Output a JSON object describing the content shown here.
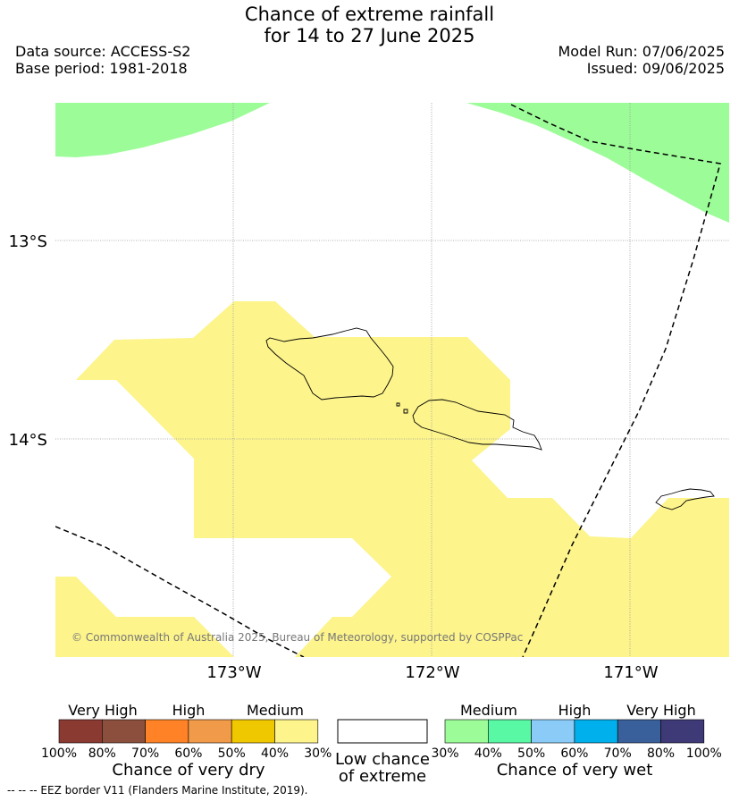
{
  "title_line1": "Chance of extreme rainfall",
  "title_line2": "for 14 to 27 June 2025",
  "data_source": "Data source: ACCESS-S2",
  "base_period": "Base period: 1981-2018",
  "model_run": "Model Run: 07/06/2025",
  "issued": "Issued: 09/06/2025",
  "lat_labels": [
    "13°S",
    "14°S"
  ],
  "lon_labels": [
    "173°W",
    "172°W",
    "171°W"
  ],
  "copyright": "© Commonwealth of Australia 2025, Bureau of Meteorology, supported by COSPPac",
  "footnote": "--  --  -- EEZ border V11 (Flanders Marine Institute, 2019).",
  "legend_dry": {
    "title": "Chance of very dry",
    "categories": [
      "Very High",
      "High",
      "Medium"
    ],
    "colors": [
      "#8b3a32",
      "#8c4f3e",
      "#ff8226",
      "#f09a4a",
      "#f0c800",
      "#fdf48c"
    ],
    "ticks": [
      "100%",
      "80%",
      "70%",
      "60%",
      "50%",
      "40%",
      "30%"
    ]
  },
  "legend_low": {
    "line1": "Low chance",
    "line2": "of extreme",
    "color": "#ffffff"
  },
  "legend_wet": {
    "title": "Chance of very wet",
    "categories": [
      "Medium",
      "High",
      "Very High"
    ],
    "colors": [
      "#9cfc98",
      "#58f8a4",
      "#8acbf8",
      "#00b0ec",
      "#3a609c",
      "#3e3a78"
    ],
    "ticks": [
      "30%",
      "40%",
      "50%",
      "60%",
      "70%",
      "80%",
      "100%"
    ]
  }
}
